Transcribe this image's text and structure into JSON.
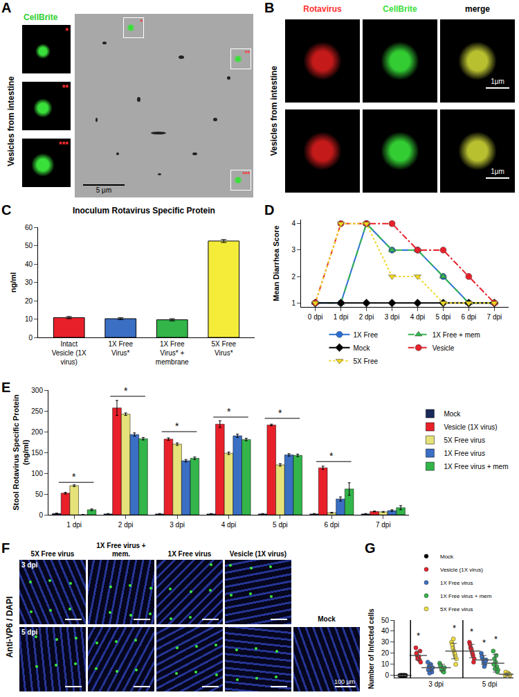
{
  "image_panels": {
    "A": {
      "letter": "A",
      "side_label": "Vesicles from intestine",
      "channel": "CellBrite",
      "inset_marks": [
        "*",
        "**",
        "***"
      ],
      "scale_bar": "5 μm"
    },
    "B": {
      "letter": "B",
      "side_label": "Vesicles from intestine",
      "columns": [
        "Rotavirus",
        "CellBrite",
        "merge"
      ],
      "scale_bars": [
        "1μm",
        "1μm"
      ]
    },
    "F": {
      "letter": "F",
      "side_label": "Anti-VP6 / DAPI",
      "columns": [
        "5X Free virus",
        "1X Free virus + mem.",
        "1X Free virus",
        "Vesicle (1X virus)"
      ],
      "rows": [
        "3 dpi",
        "5 dpi"
      ],
      "extra": "Mock",
      "scale_bar": "100 μm"
    }
  },
  "chart_data": [
    {
      "panel": "C",
      "type": "bar",
      "title": "Inoculum Rotavirus Specific Protein",
      "y_label": "ng/ml",
      "categories": [
        "Intact Vesicle (1X virus)",
        "1X Free Virus*",
        "1X Free Virus* + membrane",
        "5X Free Virus*"
      ],
      "values": [
        10.8,
        10.2,
        9.6,
        52.5
      ],
      "errors": [
        0.6,
        0.5,
        0.6,
        0.8
      ],
      "colors": [
        "#e8202a",
        "#3a6fc4",
        "#33b54a",
        "#f5ec3a"
      ],
      "ylim": [
        0,
        60
      ],
      "yticks": [
        0,
        10,
        20,
        30,
        40,
        50,
        60
      ]
    },
    {
      "panel": "D",
      "type": "line",
      "y_label": "Mean Diarrhea Score",
      "categories": [
        "0 dpi",
        "1 dpi",
        "2 dpi",
        "3 dpi",
        "4 dpi",
        "5 dpi",
        "6 dpi",
        "7 dpi"
      ],
      "ylim": [
        0.85,
        4.15
      ],
      "yticks": [
        1,
        2,
        3,
        4
      ],
      "legend": "bottom",
      "series": [
        {
          "name": "1X Free",
          "color": "#2a6fd6",
          "marker": "circle",
          "line_style": "solid",
          "values": [
            1,
            1,
            4,
            3,
            3,
            2,
            1,
            1
          ]
        },
        {
          "name": "1X Free + mem",
          "color": "#33b54a",
          "marker": "triangle-up",
          "line_style": "dash",
          "values": [
            1,
            1,
            4,
            3,
            3,
            2,
            1,
            1
          ]
        },
        {
          "name": "Mock",
          "color": "#000000",
          "marker": "diamond",
          "line_style": "solid",
          "values": [
            1,
            1,
            1,
            1,
            1,
            1,
            1,
            1
          ]
        },
        {
          "name": "Vesicle",
          "color": "#e8202a",
          "marker": "circle",
          "line_style": "dashdot",
          "values": [
            1,
            4,
            4,
            4,
            3,
            3,
            2,
            1
          ]
        },
        {
          "name": "5X Free",
          "color": "#f0d820",
          "marker": "triangle-down",
          "line_style": "dot",
          "values": [
            1,
            4,
            4,
            2,
            2,
            1,
            1,
            1
          ]
        }
      ]
    },
    {
      "panel": "E",
      "type": "bar",
      "y_label": "Stool Rotavirus Specific Protein (ng/ml)",
      "categories": [
        "1 dpi",
        "2 dpi",
        "3 dpi",
        "4 dpi",
        "5 dpi",
        "6 dpi",
        "7 dpi"
      ],
      "ylim": [
        0,
        300
      ],
      "yticks": [
        0,
        50,
        100,
        150,
        200,
        250,
        300
      ],
      "legend": "right",
      "series": [
        {
          "name": "Mock",
          "color": "#1a2a5a",
          "values": [
            3,
            2,
            2,
            2,
            2,
            2,
            2
          ],
          "errors": [
            1,
            1,
            1,
            1,
            1,
            1,
            1
          ]
        },
        {
          "name": "Vesicle (1X virus)",
          "color": "#e8202a",
          "values": [
            52,
            257,
            182,
            218,
            216,
            113,
            8
          ],
          "errors": [
            2,
            18,
            3,
            8,
            2,
            4,
            1
          ]
        },
        {
          "name": "5X Free virus",
          "color": "#e6e27a",
          "values": [
            70,
            242,
            170,
            148,
            120,
            5,
            7
          ],
          "errors": [
            2,
            3,
            3,
            3,
            3,
            1,
            1
          ]
        },
        {
          "name": "1X Free virus",
          "color": "#3a6fc4",
          "values": [
            0,
            193,
            130,
            190,
            144,
            38,
            10
          ],
          "errors": [
            1,
            4,
            3,
            4,
            3,
            5,
            2
          ]
        },
        {
          "name": "1X Free virus + mem",
          "color": "#33b54a",
          "values": [
            12,
            183,
            136,
            181,
            143,
            62,
            17
          ],
          "errors": [
            2,
            3,
            3,
            3,
            3,
            15,
            5
          ]
        }
      ],
      "annotations": [
        {
          "x": "1 dpi",
          "y": 78,
          "text": "*"
        },
        {
          "x": "2 dpi",
          "y": 285,
          "text": "*"
        },
        {
          "x": "3 dpi",
          "y": 200,
          "text": "*"
        },
        {
          "x": "4 dpi",
          "y": 235,
          "text": "*"
        },
        {
          "x": "5 dpi",
          "y": 232,
          "text": "*"
        },
        {
          "x": "6 dpi",
          "y": 128,
          "text": "*"
        }
      ]
    },
    {
      "panel": "G",
      "type": "scatter",
      "y_label": "Number of Infected cells",
      "xlim": [
        0,
        10
      ],
      "xticks": [
        {
          "value": 3.5,
          "label": "3 dpi"
        },
        {
          "value": 8,
          "label": "5 dpi"
        }
      ],
      "ylim": [
        -2,
        50
      ],
      "yticks": [
        0,
        10,
        20,
        30,
        40,
        50
      ],
      "legend": "top",
      "vlines": [
        1.35,
        5.75
      ],
      "series": [
        {
          "name": "Mock",
          "color": "#000000",
          "x": [
            0.45,
            0.55,
            0.65,
            0.75,
            0.85,
            0.95,
            0.6,
            0.8
          ],
          "values": [
            0,
            0,
            0,
            0,
            0,
            0,
            0,
            0
          ],
          "means": [
            {
              "x": 0.7,
              "mean": 0,
              "sd": 0
            }
          ]
        },
        {
          "name": "Vesicle (1X virus)",
          "color": "#e8202a",
          "x": [
            1.8,
            1.9,
            2.0,
            2.1,
            2.2,
            1.85,
            2.05,
            2.15,
            1.95,
            6.3,
            6.4,
            6.5,
            6.6,
            6.7,
            6.35,
            6.55,
            6.65,
            6.45
          ],
          "values": [
            25,
            18,
            16,
            14,
            12,
            20,
            17,
            22,
            15,
            30,
            25,
            22,
            18,
            15,
            28,
            20,
            12,
            24
          ],
          "means": [
            {
              "x": 2.0,
              "mean": 18,
              "sd": 4
            },
            {
              "x": 6.5,
              "mean": 22,
              "sd": 6
            }
          ]
        },
        {
          "name": "1X Free virus",
          "color": "#3a6fc4",
          "x": [
            2.8,
            2.9,
            3.0,
            3.1,
            3.2,
            2.85,
            3.05,
            3.15,
            2.95,
            7.3,
            7.4,
            7.5,
            7.6,
            7.7,
            7.35,
            7.55,
            7.65
          ],
          "values": [
            12,
            8,
            6,
            4,
            7,
            5,
            10,
            3,
            2,
            20,
            15,
            12,
            10,
            14,
            17,
            8,
            13
          ],
          "means": [
            {
              "x": 3.0,
              "mean": 7,
              "sd": 3
            },
            {
              "x": 7.5,
              "mean": 14,
              "sd": 4
            }
          ]
        },
        {
          "name": "1X Free virus + mem",
          "color": "#33b54a",
          "x": [
            3.8,
            3.9,
            4.0,
            4.1,
            4.2,
            3.85,
            4.05,
            4.15,
            3.95,
            8.3,
            8.4,
            8.5,
            8.6,
            8.7,
            8.35,
            8.55,
            8.65,
            8.45
          ],
          "values": [
            11,
            8,
            6,
            5,
            7,
            9,
            4,
            3,
            6,
            22,
            15,
            12,
            8,
            5,
            10,
            18,
            3,
            6
          ],
          "means": [
            {
              "x": 4.0,
              "mean": 7,
              "sd": 3
            },
            {
              "x": 8.5,
              "mean": 11,
              "sd": 8
            }
          ]
        },
        {
          "name": "5X Free virus",
          "color": "#f0e040",
          "x": [
            4.8,
            4.9,
            5.0,
            5.1,
            5.2,
            4.85,
            5.05,
            5.15,
            4.95,
            9.3,
            9.4,
            9.5,
            9.6,
            9.7,
            9.35,
            9.55,
            9.65
          ],
          "values": [
            30,
            25,
            22,
            18,
            15,
            28,
            20,
            10,
            33,
            0,
            1,
            2,
            1,
            0,
            3,
            2,
            1
          ],
          "means": [
            {
              "x": 5.0,
              "mean": 22,
              "sd": 7
            },
            {
              "x": 9.5,
              "mean": 1,
              "sd": 1
            }
          ]
        }
      ],
      "annotations": [
        {
          "x": 2.0,
          "y": 30,
          "text": "*"
        },
        {
          "x": 5.0,
          "y": 37,
          "text": "*"
        },
        {
          "x": 6.5,
          "y": 34,
          "text": "*"
        },
        {
          "x": 7.5,
          "y": 24,
          "text": "*"
        },
        {
          "x": 8.5,
          "y": 27,
          "text": "*"
        }
      ]
    }
  ]
}
